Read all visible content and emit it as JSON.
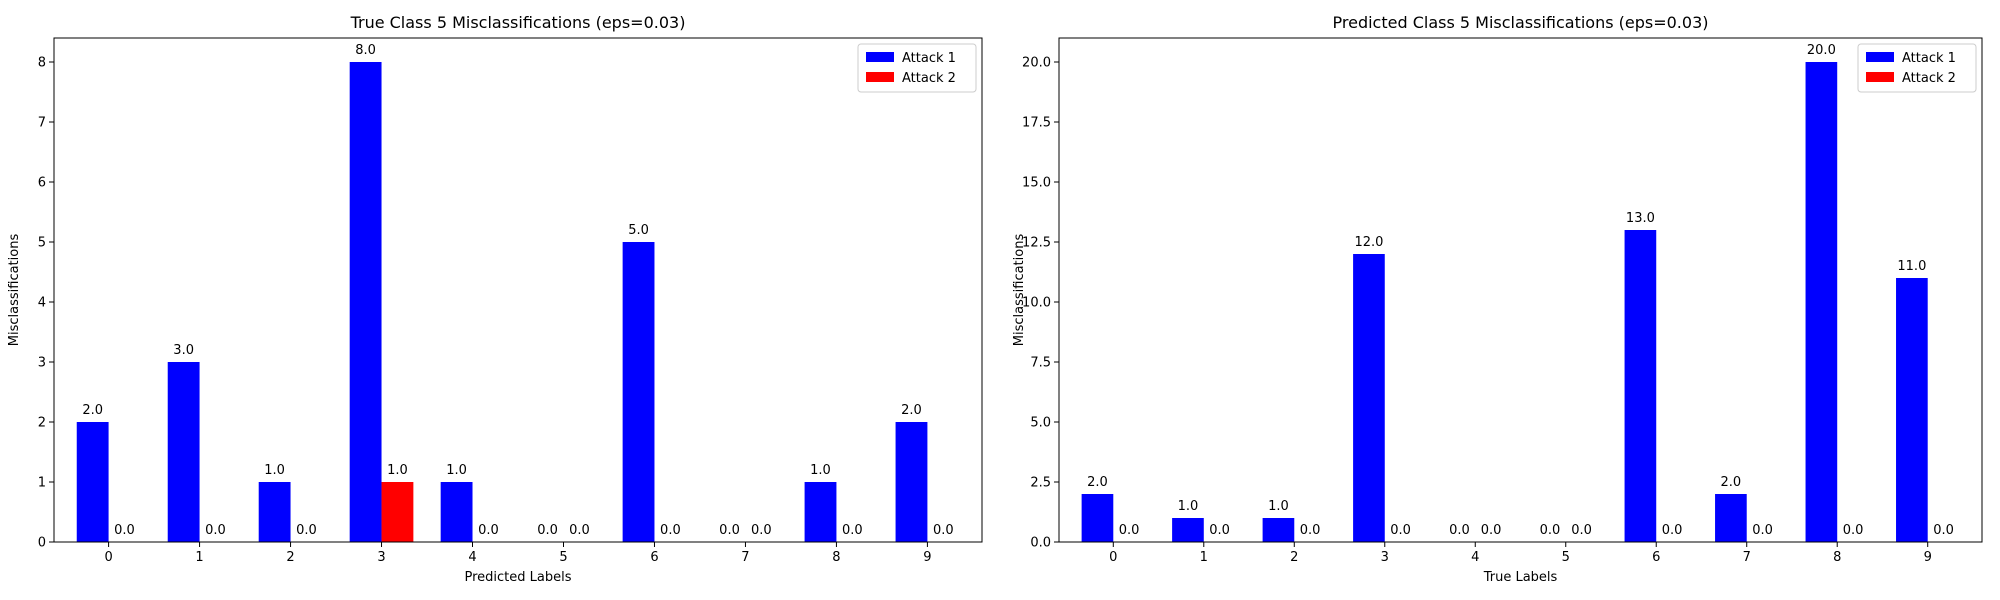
{
  "chart_data": [
    {
      "type": "bar",
      "title": "True Class 5 Misclassifications (eps=0.03)",
      "xlabel": "Predicted Labels",
      "ylabel": "Misclassifications",
      "categories": [
        "0",
        "1",
        "2",
        "3",
        "4",
        "5",
        "6",
        "7",
        "8",
        "9"
      ],
      "series": [
        {
          "name": "Attack 1",
          "color": "#0000ff",
          "values": [
            2,
            3,
            1,
            8,
            1,
            0,
            5,
            0,
            1,
            2
          ]
        },
        {
          "name": "Attack 2",
          "color": "#ff0000",
          "values": [
            0,
            0,
            0,
            1,
            0,
            0,
            0,
            0,
            0,
            0
          ]
        }
      ],
      "data_labels": {
        "Attack 1": [
          "2.0",
          "3.0",
          "1.0",
          "8.0",
          "1.0",
          "0.0",
          "5.0",
          "0.0",
          "1.0",
          "2.0"
        ],
        "Attack 2": [
          "0.0",
          "0.0",
          "0.0",
          "1.0",
          "0.0",
          "0.0",
          "0.0",
          "0.0",
          "0.0",
          "0.0"
        ]
      },
      "ylim": [
        0,
        8.4
      ],
      "yticks": [
        0,
        1,
        2,
        3,
        4,
        5,
        6,
        7,
        8
      ],
      "ytick_labels": [
        "0",
        "1",
        "2",
        "3",
        "4",
        "5",
        "6",
        "7",
        "8"
      ],
      "legend": "top-right",
      "grid": false
    },
    {
      "type": "bar",
      "title": "Predicted Class 5 Misclassifications (eps=0.03)",
      "xlabel": "True Labels",
      "ylabel": "Misclassifications",
      "categories": [
        "0",
        "1",
        "2",
        "3",
        "4",
        "5",
        "6",
        "7",
        "8",
        "9"
      ],
      "series": [
        {
          "name": "Attack 1",
          "color": "#0000ff",
          "values": [
            2,
            1,
            1,
            12,
            0,
            0,
            13,
            2,
            20,
            11
          ]
        },
        {
          "name": "Attack 2",
          "color": "#ff0000",
          "values": [
            0,
            0,
            0,
            0,
            0,
            0,
            0,
            0,
            0,
            0
          ]
        }
      ],
      "data_labels": {
        "Attack 1": [
          "2.0",
          "1.0",
          "1.0",
          "12.0",
          "0.0",
          "0.0",
          "13.0",
          "2.0",
          "20.0",
          "11.0"
        ],
        "Attack 2": [
          "0.0",
          "0.0",
          "0.0",
          "0.0",
          "0.0",
          "0.0",
          "0.0",
          "0.0",
          "0.0",
          "0.0"
        ]
      },
      "ylim": [
        0,
        21
      ],
      "yticks": [
        0,
        2.5,
        5,
        7.5,
        10,
        12.5,
        15,
        17.5,
        20
      ],
      "ytick_labels": [
        "0.0",
        "2.5",
        "5.0",
        "7.5",
        "10.0",
        "12.5",
        "15.0",
        "17.5",
        "20.0"
      ],
      "legend": "top-right",
      "grid": false
    }
  ]
}
